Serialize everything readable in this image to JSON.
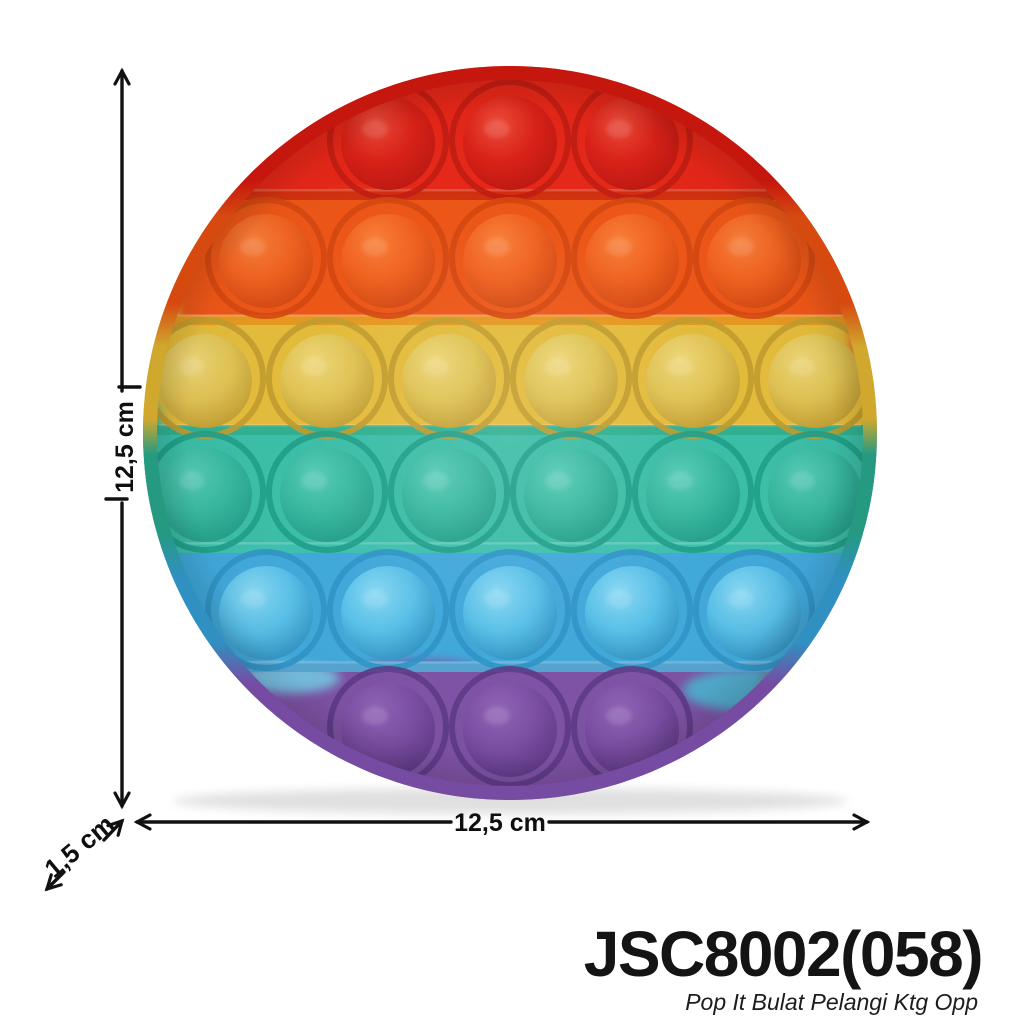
{
  "product": {
    "code": "JSC8002(058)",
    "name": "Pop It Bulat Pelangi Ktg Opp"
  },
  "dimensions": {
    "height_label": "12,5 cm",
    "width_label": "12,5 cm",
    "depth_label": "1,5 cm"
  },
  "figure": {
    "type": "round rainbow pop-it fidget toy, top view",
    "total_bubbles": 28,
    "background": "#ffffff",
    "annotation_color": "#111111",
    "bubble_rows": [
      {
        "color_name": "red",
        "count": 3,
        "band": "#e52718",
        "dome": "#da2118",
        "dome_light": "#ef4c39",
        "dome_dark": "#b71710",
        "groove": "#c11d12",
        "rim": "#c6170e"
      },
      {
        "color_name": "orange",
        "count": 5,
        "band": "#ec5617",
        "dome": "#f0611f",
        "dome_light": "#f87f3a",
        "dome_dark": "#cc4410",
        "groove": "#d4470f",
        "rim": "#d64a10"
      },
      {
        "color_name": "yellow",
        "count": 6,
        "band": "#e3bb3b",
        "dome": "#dfc253",
        "dome_light": "#eed677",
        "dome_dark": "#bd982e",
        "groove": "#c09b2d",
        "rim": "#d0a82e"
      },
      {
        "color_name": "teal",
        "count": 6,
        "band": "#3bbda6",
        "dome": "#38b79f",
        "dome_light": "#55cbb6",
        "dome_dark": "#219a85",
        "groove": "#1f9d88",
        "rim": "#259a81"
      },
      {
        "color_name": "blue",
        "count": 5,
        "band": "#41a8da",
        "dome": "#58bfe7",
        "dome_light": "#89d8f3",
        "dome_dark": "#2d8cbd",
        "groove": "#3094c5",
        "rim": "#3090c1"
      },
      {
        "color_name": "purple",
        "count": 3,
        "band": "#7e52a4",
        "dome": "#7b4ea3",
        "dome_light": "#9064b7",
        "dome_dark": "#5b3783",
        "groove": "#5e3a86",
        "rim": "#764ba2"
      }
    ],
    "ridge_colors": [
      "#cf2f10",
      "#e5971f",
      "#2fae91",
      "#3ec0ae",
      "#55a5d2"
    ]
  }
}
